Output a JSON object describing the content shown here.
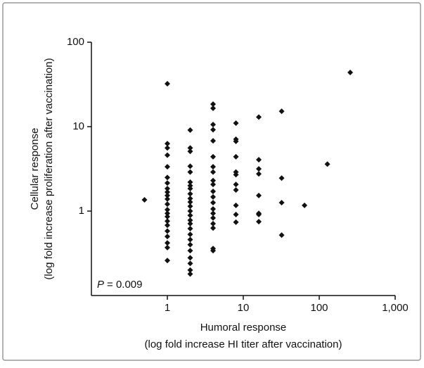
{
  "chart_data": {
    "type": "scatter",
    "y_label_line1": "Cellular response",
    "y_label_line2": "(log fold increase proliferation after vaccination)",
    "x_label_line1": "Humoral response",
    "x_label_line2": "(log fold increase HI titer after vaccination)",
    "annotation_symbol": "P",
    "annotation_text": "= 0.009",
    "color": "#111111",
    "log_x": true,
    "log_y": true,
    "xlim": [
      0.1,
      1000
    ],
    "ylim": [
      0.1,
      100
    ],
    "xticks": [
      1,
      10,
      100,
      {
        "value": 1000,
        "label": "1,000"
      }
    ],
    "yticks": [
      1,
      10,
      100
    ],
    "x": [
      0.5,
      1,
      1,
      1,
      1,
      1,
      1,
      1,
      1,
      1,
      1,
      1,
      1,
      1,
      1,
      1,
      1,
      1,
      1,
      1,
      1,
      1,
      1,
      2,
      2,
      2,
      2,
      2,
      2,
      2,
      2,
      2,
      2,
      2,
      2,
      2,
      2,
      2,
      2,
      2,
      2,
      2,
      2,
      2,
      2,
      2,
      2,
      2,
      4,
      4,
      4,
      4,
      4,
      4,
      4,
      4,
      4,
      4,
      4,
      4,
      4,
      4,
      4,
      4,
      4,
      4,
      4,
      4,
      8,
      8,
      8,
      8,
      8,
      8,
      8,
      8,
      8,
      8,
      8,
      16,
      16,
      16,
      16,
      16,
      16,
      16,
      16,
      32,
      32,
      32,
      32,
      64,
      128,
      256
    ],
    "values": [
      1.36,
      32.2,
      6.3,
      5.6,
      4.6,
      3.35,
      2.5,
      2.15,
      1.85,
      1.68,
      1.53,
      1.39,
      1.21,
      1.04,
      0.94,
      0.86,
      0.76,
      0.68,
      0.58,
      0.5,
      0.42,
      0.37,
      0.26,
      9.1,
      5.6,
      5.1,
      3.4,
      2.9,
      2.2,
      2.0,
      1.85,
      1.6,
      1.41,
      1.28,
      1.14,
      1.0,
      0.89,
      0.78,
      0.71,
      0.62,
      0.53,
      0.46,
      0.4,
      0.34,
      0.28,
      0.24,
      0.2,
      0.18,
      18.5,
      16.5,
      10.6,
      9.2,
      6.8,
      4.4,
      3.35,
      2.9,
      2.3,
      2.07,
      1.71,
      1.47,
      1.26,
      1.06,
      0.94,
      0.83,
      0.71,
      0.63,
      0.36,
      0.34,
      11,
      7.1,
      6.7,
      4.4,
      2.9,
      2.7,
      2.07,
      1.78,
      1.17,
      0.91,
      0.74,
      13,
      4.06,
      3.16,
      2.76,
      1.53,
      0.94,
      0.91,
      0.75,
      15.2,
      2.46,
      1.26,
      0.52,
      1.17,
      3.6,
      43.8
    ]
  }
}
